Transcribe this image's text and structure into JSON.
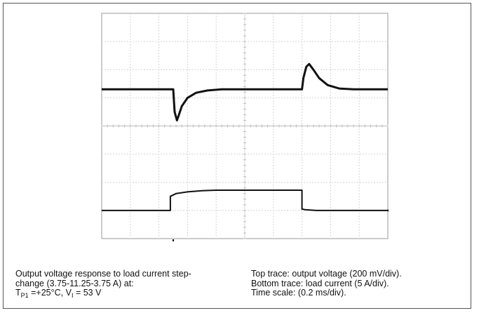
{
  "caption": {
    "left": {
      "line1": "Output voltage response to load current step-",
      "line2": "change (3.75-11.25-3.75 A) at:",
      "line3_T": "T",
      "line3_T_sub": "P1",
      "line3_mid": " =+25°C, V",
      "line3_V_sub": "I",
      "line3_end": " = 53 V"
    },
    "right": {
      "line1": "Top trace: output voltage (200 mV/div).",
      "line2": "Bottom trace: load current (5 A/div).",
      "line3": "Time scale: (0.2 ms/div)."
    }
  },
  "chart_data": {
    "type": "line",
    "title": "",
    "x_divisions": 10,
    "y_divisions": 8,
    "series": [
      {
        "x": [
          0,
          2.5,
          2.55,
          2.63,
          2.7,
          2.8,
          3.0,
          3.3,
          3.7,
          4.2,
          5.0,
          6.0,
          7.0,
          7.05,
          7.15,
          7.25,
          7.4,
          7.6,
          7.9,
          8.3,
          8.8,
          10
        ],
        "y": [
          5.3,
          5.3,
          4.5,
          4.2,
          4.4,
          4.7,
          5.0,
          5.18,
          5.26,
          5.3,
          5.3,
          5.3,
          5.3,
          5.7,
          6.1,
          6.2,
          6.0,
          5.7,
          5.45,
          5.33,
          5.3,
          5.3
        ]
      },
      {
        "x": [
          0,
          2.4,
          2.4,
          2.5,
          2.6,
          3.0,
          3.5,
          4.0,
          5.0,
          6.0,
          7.0,
          7.0,
          7.1,
          7.5,
          8.0,
          10
        ],
        "y": [
          1.0,
          1.0,
          1.5,
          1.55,
          1.6,
          1.66,
          1.7,
          1.72,
          1.72,
          1.72,
          1.72,
          1.05,
          1.03,
          1.0,
          1.0,
          1.0
        ]
      }
    ]
  }
}
